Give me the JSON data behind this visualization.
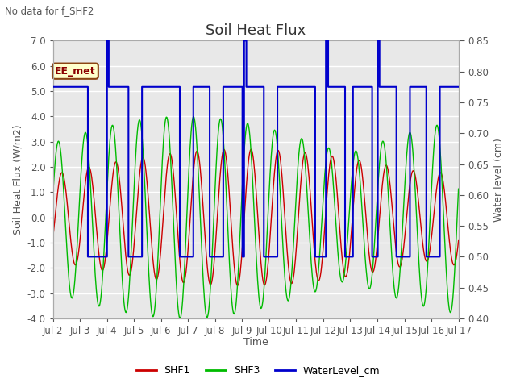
{
  "title": "Soil Heat Flux",
  "subtitle": "No data for f_SHF2",
  "xlabel": "Time",
  "ylabel_left": "Soil Heat Flux (W/m2)",
  "ylabel_right": "Water level (cm)",
  "ylim_left": [
    -4.0,
    7.0
  ],
  "ylim_right": [
    0.4,
    0.85
  ],
  "yticks_left": [
    -4.0,
    -3.0,
    -2.0,
    -1.0,
    0.0,
    1.0,
    2.0,
    3.0,
    4.0,
    5.0,
    6.0,
    7.0
  ],
  "yticks_right": [
    0.4,
    0.45,
    0.5,
    0.55,
    0.6,
    0.65,
    0.7,
    0.75,
    0.8,
    0.85
  ],
  "xtick_labels": [
    "Jul 2",
    "Jul 3",
    "Jul 4",
    "Jul 5",
    "Jul 6",
    "Jul 7",
    "Jul 8",
    "Jul 9",
    "Jul 10",
    "Jul 11",
    "Jul 12",
    "Jul 13",
    "Jul 14",
    "Jul 15",
    "Jul 16",
    "Jul 17"
  ],
  "shf1_color": "#cc0000",
  "shf3_color": "#00bb00",
  "water_color": "#0000cc",
  "legend_label_shf1": "SHF1",
  "legend_label_shf3": "SHF3",
  "legend_label_water": "WaterLevel_cm",
  "annotation_text": "EE_met",
  "plot_bg": "#e8e8e8",
  "title_fontsize": 13,
  "axis_label_fontsize": 9,
  "tick_fontsize": 8.5,
  "legend_fontsize": 9
}
